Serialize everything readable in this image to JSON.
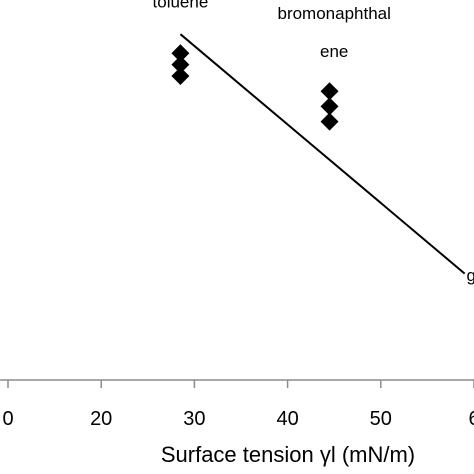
{
  "chart_data": {
    "type": "scatter",
    "title": "",
    "xlabel": "Surface tension γl (mN/m)",
    "ylabel": "",
    "xlim": [
      10,
      60
    ],
    "ylim": [
      0,
      1
    ],
    "x_ticks": [
      "0",
      "20",
      "30",
      "40",
      "50",
      "6"
    ],
    "grid": false,
    "legend": "none",
    "series": [
      {
        "marker": "diamond",
        "color": "#000000",
        "points": [
          {
            "x": 28.5,
            "y": 0.86
          },
          {
            "x": 28.5,
            "y": 0.83
          },
          {
            "x": 28.5,
            "y": 0.8
          },
          {
            "x": 44.5,
            "y": 0.76
          },
          {
            "x": 44.5,
            "y": 0.72
          },
          {
            "x": 44.5,
            "y": 0.68
          }
        ]
      }
    ],
    "fit_line": {
      "x": [
        28.5,
        59.0
      ],
      "y": [
        0.91,
        0.28
      ]
    },
    "annotations": [
      {
        "text": "toluene",
        "x": 28.5,
        "y": 0.98
      },
      {
        "text": "bromonaphthal",
        "x": 45,
        "y": 0.95
      },
      {
        "text": "ene",
        "x": 45,
        "y": 0.85
      },
      {
        "text": "g",
        "x": 59.7,
        "y": 0.26
      }
    ]
  }
}
